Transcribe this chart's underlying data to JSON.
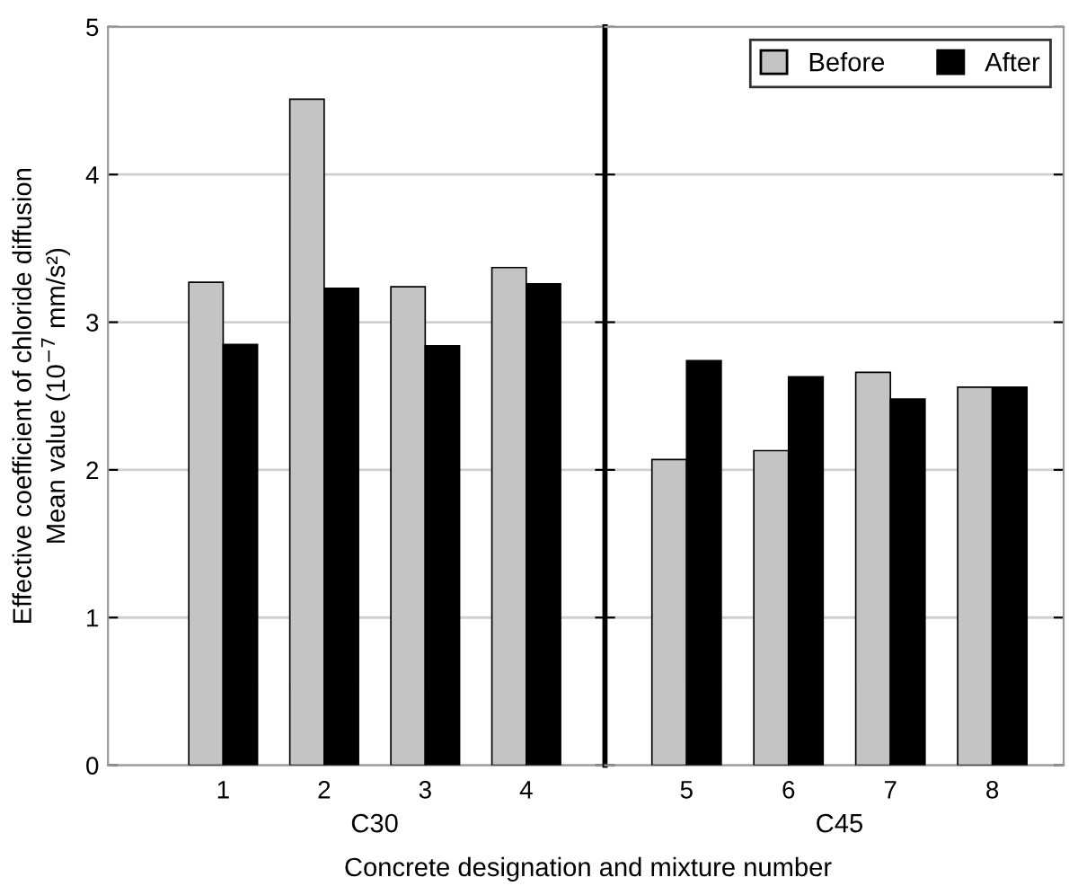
{
  "chart_data": [
    {
      "type": "bar",
      "categories": [
        "1",
        "2",
        "3",
        "4"
      ],
      "series": [
        {
          "color": "#c4c4c4",
          "values": [
            3.27,
            4.51,
            3.24,
            3.37
          ]
        },
        {
          "color": "#000000",
          "values": [
            2.85,
            3.23,
            2.84,
            3.26
          ]
        }
      ],
      "ylim": [
        0,
        5
      ],
      "yticks": [
        0,
        1,
        2,
        3,
        4,
        5
      ],
      "grid": "y",
      "ylabel": "Effective coefficient of chloride diffusion\nMean value (10$^{−7}$ mm/s²)",
      "xlabel": "Concrete designation and mixture number",
      "annotations": [
        "C30"
      ]
    },
    {
      "type": "bar",
      "categories": [
        "5",
        "6",
        "7",
        "8"
      ],
      "series": [
        {
          "name": "Before",
          "color": "#c4c4c4",
          "values": [
            2.07,
            2.13,
            2.66,
            2.56
          ]
        },
        {
          "name": "After",
          "color": "#000000",
          "values": [
            2.74,
            2.63,
            2.48,
            2.56
          ]
        }
      ],
      "ylim": [
        0,
        5
      ],
      "yticks": [
        0,
        1,
        2,
        3,
        4,
        5
      ],
      "grid": "y",
      "legend": "top right",
      "tick_labels": "x",
      "annotations": [
        "C45"
      ]
    }
  ]
}
